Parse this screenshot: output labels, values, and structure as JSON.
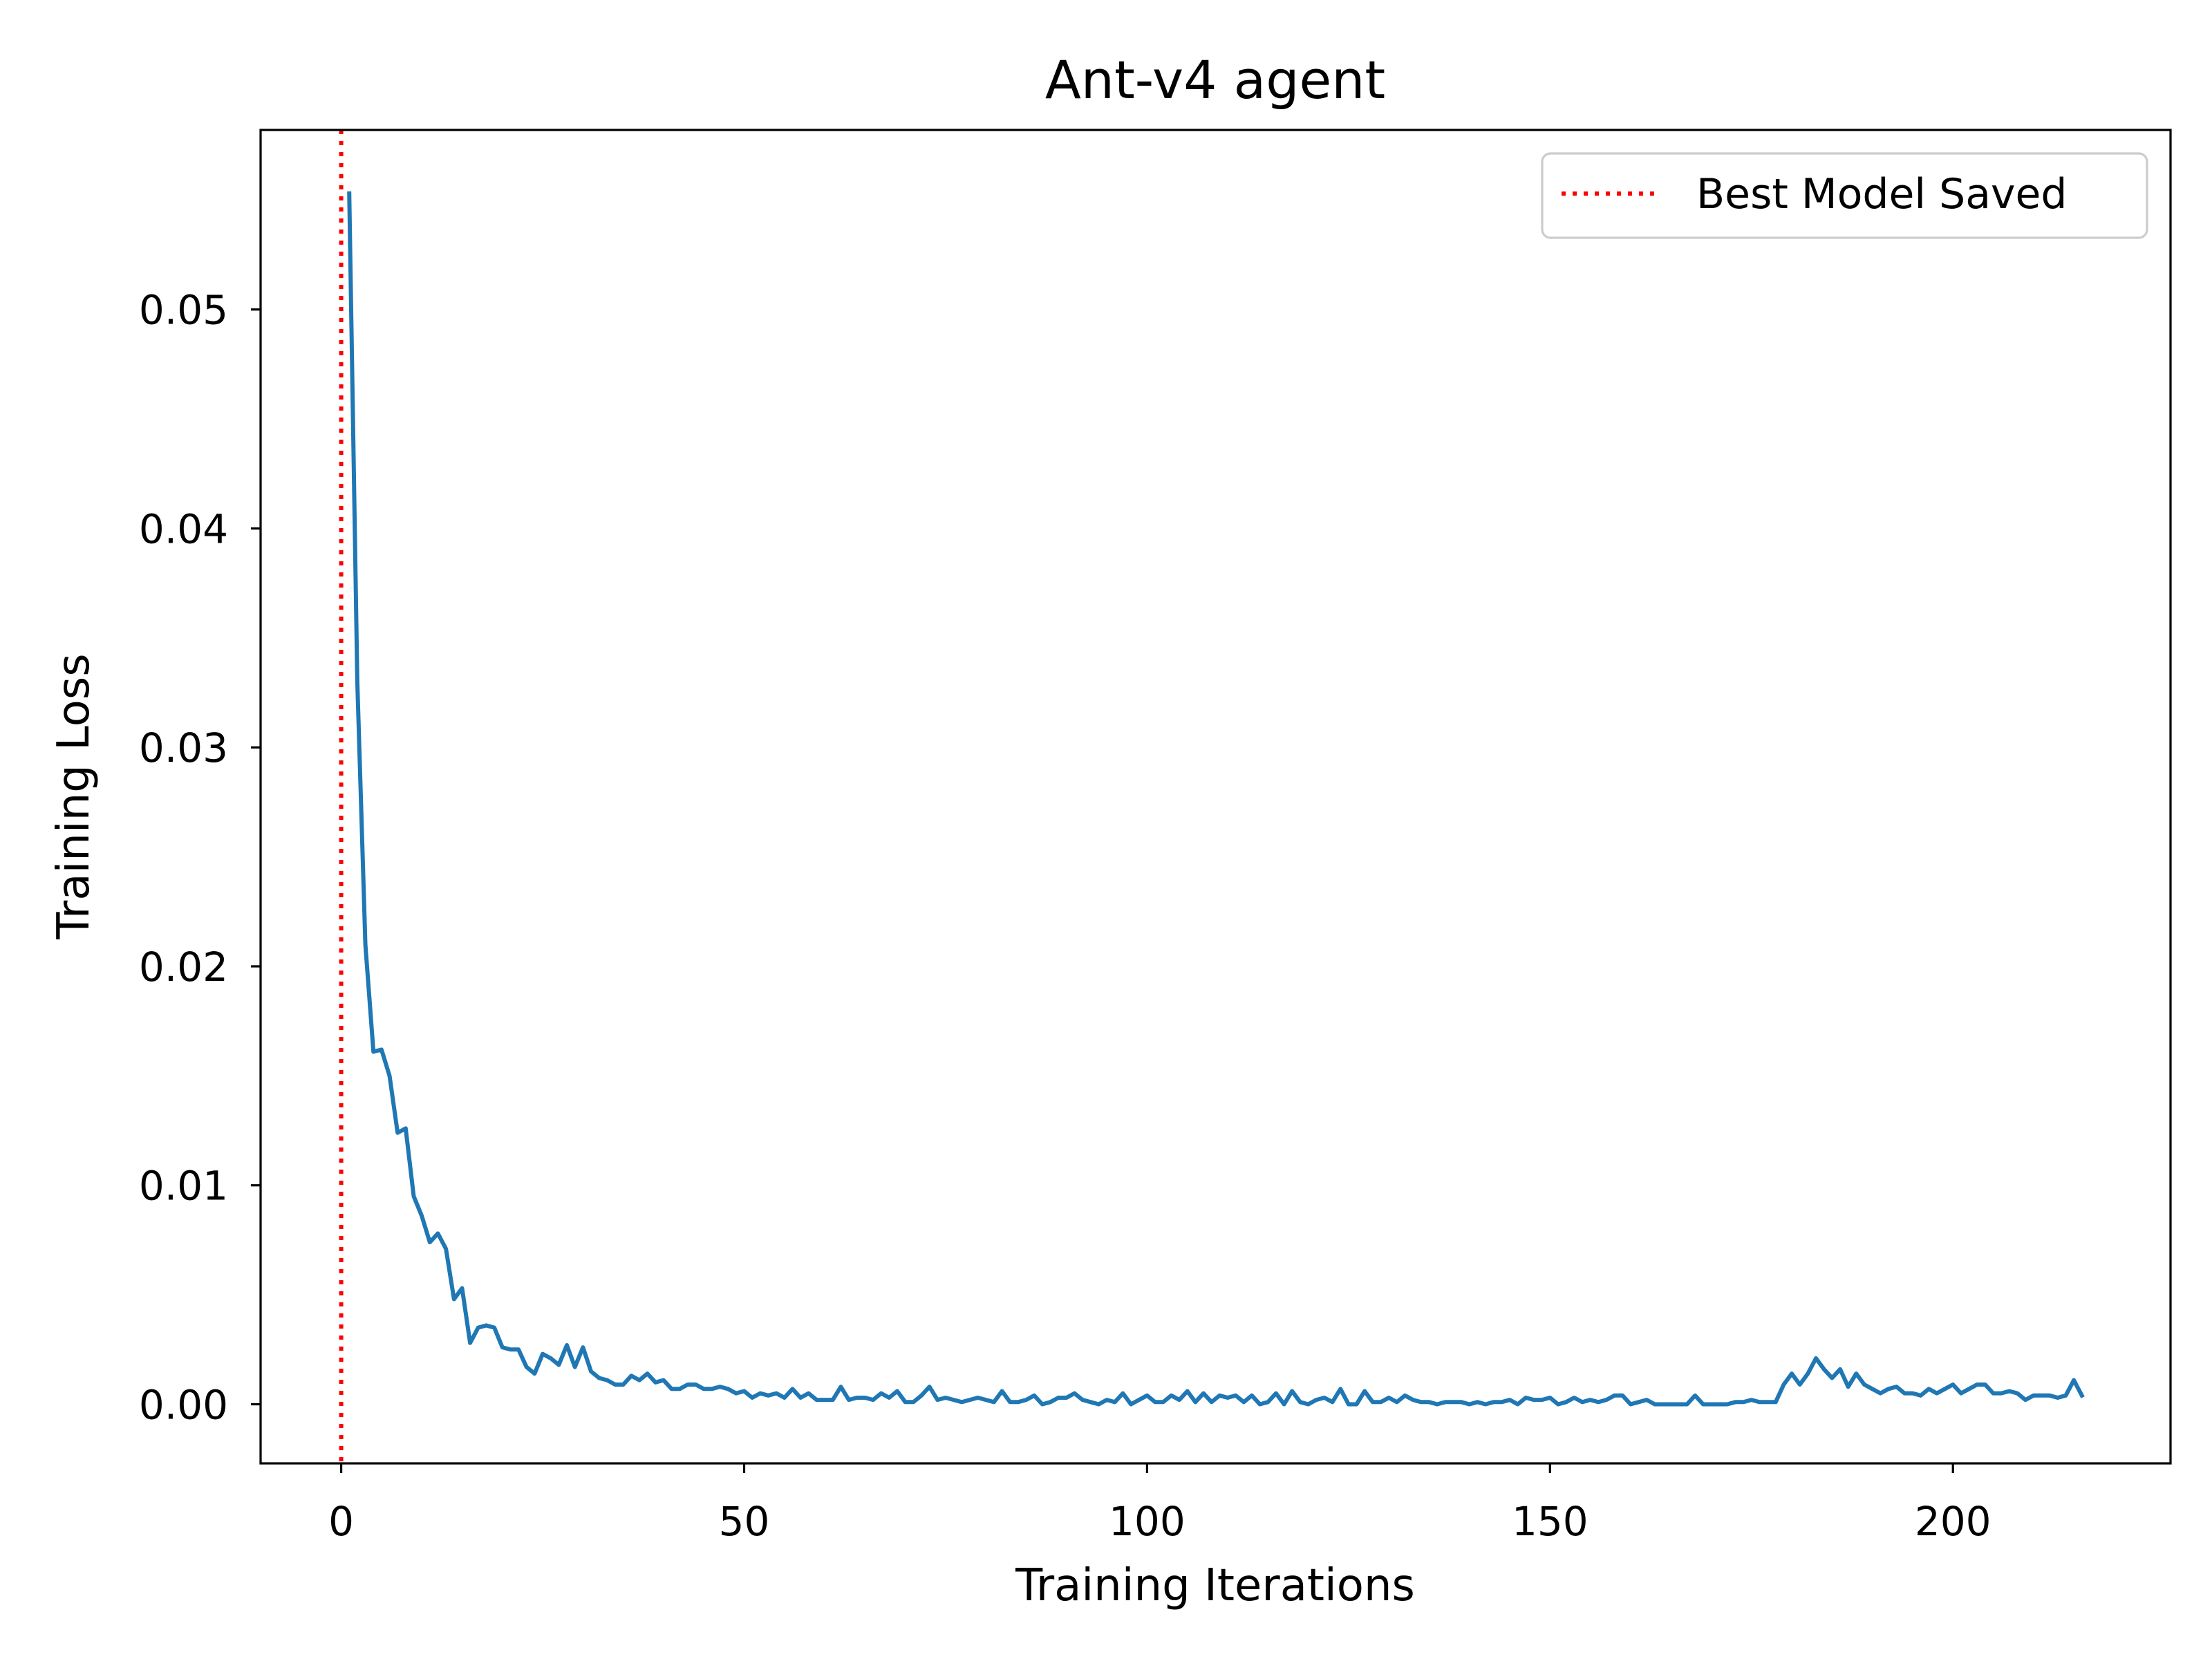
{
  "chart_data": {
    "type": "line",
    "title": "Ant-v4 agent",
    "xlabel": "Training Iterations",
    "ylabel": "Training Loss",
    "xlim": [
      -10,
      227
    ],
    "ylim": [
      -0.0027,
      0.0582
    ],
    "xticks": [
      0,
      50,
      100,
      150,
      200
    ],
    "xtick_labels": [
      "0",
      "50",
      "100",
      "150",
      "200"
    ],
    "yticks": [
      0.0,
      0.01,
      0.02,
      0.03,
      0.04,
      0.05
    ],
    "ytick_labels": [
      "0.00",
      "0.01",
      "0.02",
      "0.03",
      "0.04",
      "0.05"
    ],
    "grid": false,
    "legend_position": "upper right",
    "legend": [
      "Best Model Saved"
    ],
    "vline": {
      "x": 0,
      "label": "Best Model Saved",
      "color": "#ff0000",
      "style": "dotted"
    },
    "series": [
      {
        "name": "",
        "color": "#1f77b4",
        "x_start": 1,
        "values": [
          0.0553,
          0.033,
          0.021,
          0.0161,
          0.0162,
          0.015,
          0.0124,
          0.0126,
          0.0095,
          0.0086,
          0.0074,
          0.0078,
          0.0071,
          0.0048,
          0.0053,
          0.0028,
          0.0035,
          0.0036,
          0.0035,
          0.0026,
          0.0025,
          0.0025,
          0.0017,
          0.0014,
          0.0023,
          0.0021,
          0.0018,
          0.0027,
          0.0017,
          0.0026,
          0.0015,
          0.0012,
          0.0011,
          0.0009,
          0.0009,
          0.0013,
          0.0011,
          0.0014,
          0.001,
          0.0011,
          0.0007,
          0.0007,
          0.0009,
          0.0009,
          0.0007,
          0.0007,
          0.0008,
          0.0007,
          0.0005,
          0.0006,
          0.0003,
          0.0005,
          0.0004,
          0.0005,
          0.0003,
          0.0007,
          0.0003,
          0.0005,
          0.0002,
          0.0002,
          0.0002,
          0.0008,
          0.0002,
          0.0003,
          0.0003,
          0.0002,
          0.0005,
          0.0003,
          0.0006,
          0.0001,
          0.0001,
          0.0004,
          0.0008,
          0.0002,
          0.0003,
          0.0002,
          0.0001,
          0.0002,
          0.0003,
          0.0002,
          0.0001,
          0.0006,
          0.0001,
          0.0001,
          0.0002,
          0.0004,
          0.0,
          0.0001,
          0.0003,
          0.0003,
          0.0005,
          0.0002,
          0.0001,
          0.0,
          0.0002,
          0.0001,
          0.0005,
          0.0,
          0.0002,
          0.0004,
          0.0001,
          0.0001,
          0.0004,
          0.0002,
          0.0006,
          0.0001,
          0.0005,
          0.0001,
          0.0004,
          0.0003,
          0.0004,
          0.0001,
          0.0004,
          0.0,
          0.0001,
          0.0005,
          0.0,
          0.0006,
          0.0001,
          0.0,
          0.0002,
          0.0003,
          0.0001,
          0.0007,
          0.0,
          0.0,
          0.0006,
          0.0001,
          0.0001,
          0.0003,
          0.0001,
          0.0004,
          0.0002,
          0.0001,
          0.0001,
          0.0,
          0.0001,
          0.0001,
          0.0001,
          0.0,
          0.0001,
          0.0,
          0.0001,
          0.0001,
          0.0002,
          0.0,
          0.0003,
          0.0002,
          0.0002,
          0.0003,
          0.0,
          0.0001,
          0.0003,
          0.0001,
          0.0002,
          0.0001,
          0.0002,
          0.0004,
          0.0004,
          0.0,
          0.0001,
          0.0002,
          0.0,
          0.0,
          0.0,
          0.0,
          0.0,
          0.0004,
          0.0,
          0.0,
          0.0,
          0.0,
          0.0001,
          0.0001,
          0.0002,
          0.0001,
          0.0001,
          0.0001,
          0.0009,
          0.0014,
          0.0009,
          0.0014,
          0.0021,
          0.0016,
          0.0012,
          0.0016,
          0.0008,
          0.0014,
          0.0009,
          0.0007,
          0.0005,
          0.0007,
          0.0008,
          0.0005,
          0.0005,
          0.0004,
          0.0007,
          0.0005,
          0.0007,
          0.0009,
          0.0005,
          0.0007,
          0.0009,
          0.0009,
          0.0005,
          0.0005,
          0.0006,
          0.0005,
          0.0002,
          0.0004,
          0.0004,
          0.0004,
          0.0003,
          0.0004,
          0.0011,
          0.0004
        ]
      }
    ]
  }
}
